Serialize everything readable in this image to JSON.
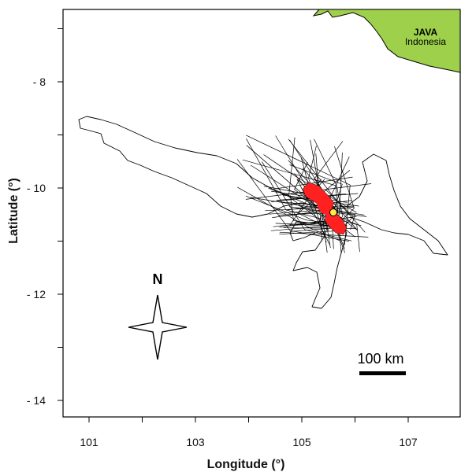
{
  "map": {
    "xlabel": "Longitude (°)",
    "ylabel": "Latitude (°)",
    "x_ticks": [
      "101",
      "103",
      "105",
      "107"
    ],
    "y_ticks": [
      "- 8",
      "- 10",
      "- 12",
      "- 14"
    ],
    "x_tick_values": [
      101,
      102,
      103,
      104,
      105,
      106,
      107
    ],
    "y_tick_values": [
      -7,
      -8,
      -9,
      -10,
      -11,
      -12,
      -13,
      -14
    ],
    "landmass": {
      "name": "JAVA",
      "country": "Indonesia",
      "fill_color": "#9ed04b"
    },
    "compass_label": "N",
    "scale_bar_label": "100 km",
    "track_color": "#000000",
    "core_area_color": "#ff2020",
    "tag_site_color": "#ffe84a"
  }
}
